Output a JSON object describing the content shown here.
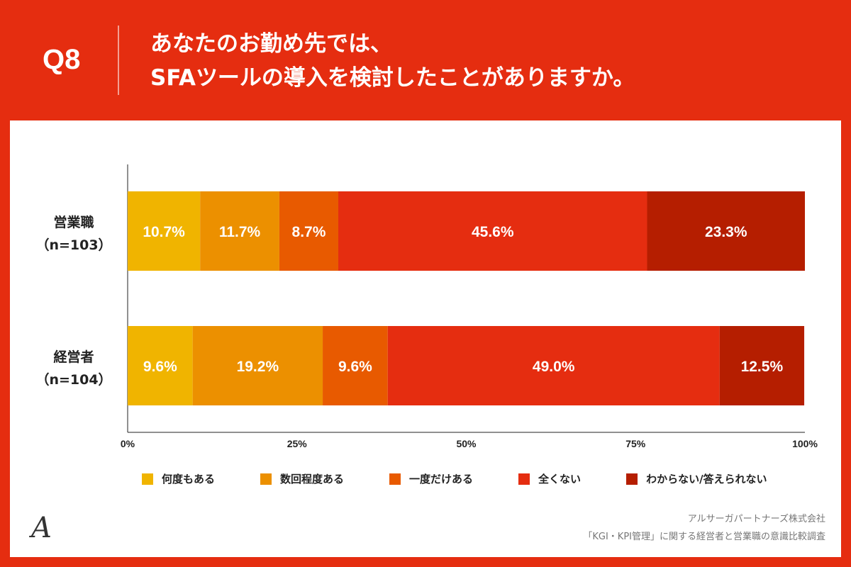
{
  "header": {
    "question_id": "Q8",
    "question_line1": "あなたのお勤め先では、",
    "question_line2": "SFAツールの導入を検討したことがありますか。"
  },
  "chart_data": {
    "type": "bar",
    "orientation": "horizontal-stacked-100",
    "categories": [
      {
        "name": "営業職",
        "n": "（n=103）"
      },
      {
        "name": "経営者",
        "n": "（n=104）"
      }
    ],
    "series": [
      {
        "name": "何度もある",
        "color": "#f0b400",
        "values": [
          10.7,
          9.6
        ]
      },
      {
        "name": "数回程度ある",
        "color": "#ec9000",
        "values": [
          11.7,
          19.2
        ]
      },
      {
        "name": "一度だけある",
        "color": "#e85a00",
        "values": [
          8.7,
          9.6
        ]
      },
      {
        "name": "全くない",
        "color": "#e52d10",
        "values": [
          45.6,
          49.0
        ]
      },
      {
        "name": "わからない/答えられない",
        "color": "#b51e00",
        "values": [
          23.3,
          12.5
        ]
      }
    ],
    "data_labels": [
      [
        "10.7%",
        "11.7%",
        "8.7%",
        "45.6%",
        "23.3%"
      ],
      [
        "9.6%",
        "19.2%",
        "9.6%",
        "49.0%",
        "12.5%"
      ]
    ],
    "x_ticks": [
      "0%",
      "25%",
      "50%",
      "75%",
      "100%"
    ],
    "xlim": [
      0,
      100
    ],
    "legend_position": "bottom"
  },
  "footer": {
    "logo_mark": "A",
    "company": "アルサーガパートナーズ株式会社",
    "survey": "「KGI・KPI管理」に関する経営者と営業職の意識比較調査"
  }
}
